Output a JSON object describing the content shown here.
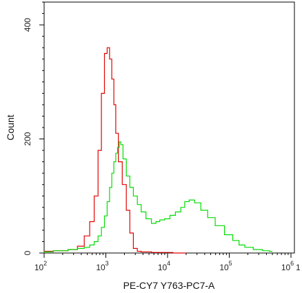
{
  "chart_data": {
    "type": "line",
    "title": "",
    "xlabel": "PE-CY7 Y763-PC7-A",
    "ylabel": "Count",
    "xscale": "log",
    "xlim": [
      100,
      10000000
    ],
    "ylim": [
      0,
      440
    ],
    "x_ticks": [
      {
        "base": "10",
        "exp": "2",
        "value": 100
      },
      {
        "base": "10",
        "exp": "3",
        "value": 1000
      },
      {
        "base": "10",
        "exp": "4",
        "value": 10000
      },
      {
        "base": "10",
        "exp": "5",
        "value": 100000
      },
      {
        "base": "10",
        "exp": "6",
        "value": 1000000
      }
    ],
    "y_ticks": [
      {
        "label": "0",
        "value": 0
      },
      {
        "label": "200",
        "value": 200
      },
      {
        "label": "400",
        "value": 400
      }
    ],
    "grid": false,
    "legend": "none",
    "series": [
      {
        "color": "#e00000",
        "x": [
          100,
          200,
          300,
          400,
          500,
          600,
          700,
          800,
          900,
          1000,
          1100,
          1200,
          1300,
          1400,
          1500,
          1700,
          2000,
          2300,
          2600,
          3000,
          3500,
          4000,
          5000,
          6000,
          8000,
          10000,
          15000,
          20000
        ],
        "y": [
          3,
          4,
          6,
          12,
          30,
          55,
          100,
          180,
          280,
          350,
          360,
          340,
          305,
          260,
          210,
          160,
          120,
          75,
          35,
          8,
          3,
          2,
          2,
          1,
          1,
          1,
          0,
          0
        ]
      },
      {
        "color": "#00dd00",
        "x": [
          100,
          200,
          300,
          400,
          500,
          600,
          700,
          800,
          900,
          1000,
          1100,
          1200,
          1300,
          1400,
          1500,
          1600,
          1700,
          1800,
          2000,
          2300,
          2600,
          3000,
          3500,
          4000,
          5000,
          6000,
          7000,
          8000,
          10000,
          12000,
          15000,
          18000,
          20000,
          25000,
          30000,
          40000,
          50000,
          70000,
          100000,
          130000,
          160000,
          200000,
          300000,
          400000,
          500000
        ],
        "y": [
          2,
          4,
          6,
          8,
          10,
          14,
          20,
          30,
          45,
          65,
          90,
          115,
          140,
          160,
          175,
          185,
          195,
          190,
          165,
          135,
          115,
          100,
          85,
          72,
          60,
          52,
          55,
          58,
          60,
          66,
          72,
          80,
          90,
          93,
          88,
          75,
          62,
          48,
          32,
          22,
          14,
          10,
          6,
          4,
          3
        ]
      }
    ]
  }
}
